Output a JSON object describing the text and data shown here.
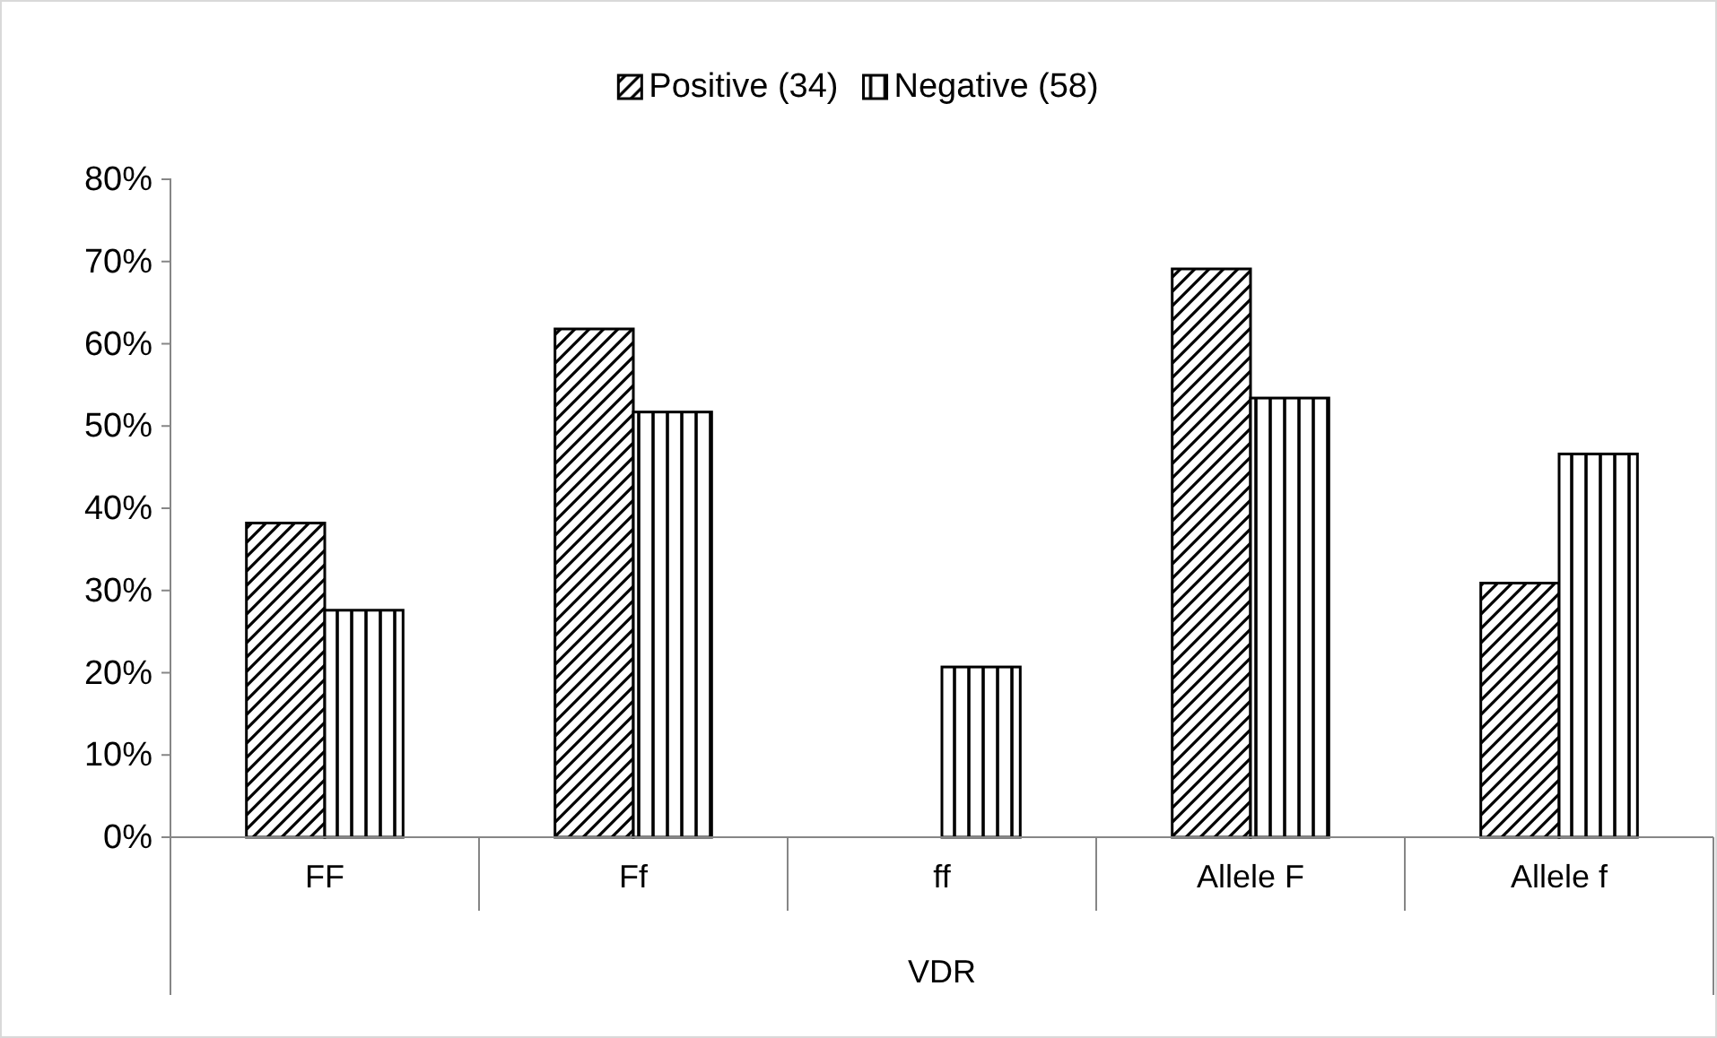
{
  "chart_data": {
    "type": "bar",
    "xlabel": "VDR",
    "categories": [
      "FF",
      "Ff",
      "ff",
      "Allele F",
      "Allele f"
    ],
    "series": [
      {
        "name": "Positive (34)",
        "color": "#000000",
        "values": [
          38.2,
          61.8,
          0,
          69.1,
          30.9
        ]
      },
      {
        "name": "Negative (58)",
        "color": "#000000",
        "values": [
          27.6,
          51.7,
          20.7,
          53.4,
          46.6
        ]
      }
    ],
    "ylim": [
      0,
      80
    ],
    "yticks": [
      {
        "value": 0,
        "label": "0%"
      },
      {
        "value": 10,
        "label": "10%"
      },
      {
        "value": 20,
        "label": "20%"
      },
      {
        "value": 30,
        "label": "30%"
      },
      {
        "value": 40,
        "label": "40%"
      },
      {
        "value": 50,
        "label": "50%"
      },
      {
        "value": 60,
        "label": "60%"
      },
      {
        "value": 70,
        "label": "70%"
      },
      {
        "value": 80,
        "label": "80%"
      }
    ],
    "grid": false,
    "legend": "top"
  }
}
